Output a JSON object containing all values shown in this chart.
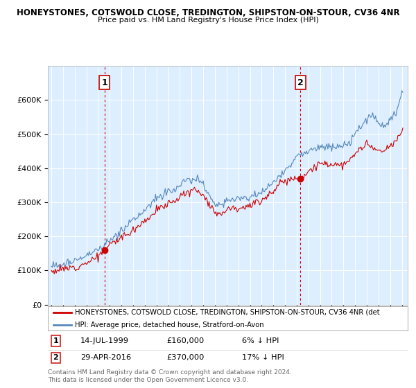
{
  "title1": "HONEYSTONES, COTSWOLD CLOSE, TREDINGTON, SHIPSTON-ON-STOUR, CV36 4NR",
  "title2": "Price paid vs. HM Land Registry's House Price Index (HPI)",
  "legend_label_red": "HONEYSTONES, COTSWOLD CLOSE, TREDINGTON, SHIPSTON-ON-STOUR, CV36 4NR (det",
  "legend_label_blue": "HPI: Average price, detached house, Stratford-on-Avon",
  "annotation1_date": "14-JUL-1999",
  "annotation1_price": "£160,000",
  "annotation1_hpi": "6% ↓ HPI",
  "annotation1_year": 1999.54,
  "annotation1_value": 160000,
  "annotation2_date": "29-APR-2016",
  "annotation2_price": "£370,000",
  "annotation2_hpi": "17% ↓ HPI",
  "annotation2_year": 2016.33,
  "annotation2_value": 370000,
  "footer": "Contains HM Land Registry data © Crown copyright and database right 2024.\nThis data is licensed under the Open Government Licence v3.0.",
  "red_color": "#cc0000",
  "blue_color": "#5588bb",
  "plot_bg_color": "#ddeeff",
  "grid_color": "#ffffff",
  "ylim": [
    0,
    700000
  ],
  "yticks": [
    0,
    100000,
    200000,
    300000,
    400000,
    500000,
    600000
  ],
  "xlim_start": 1994.7,
  "xlim_end": 2025.5
}
